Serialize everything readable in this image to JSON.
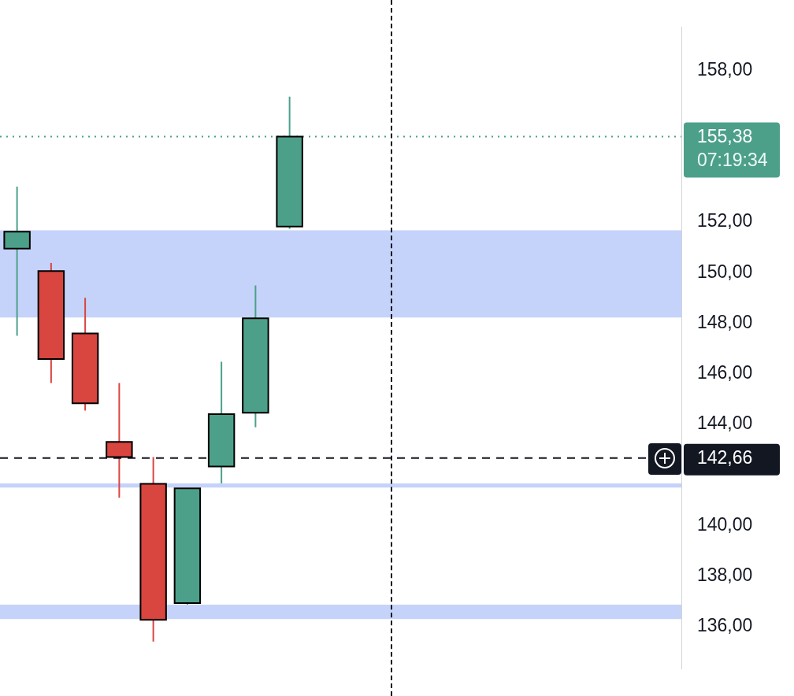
{
  "chart_data": {
    "type": "candlestick",
    "categories": [
      null,
      null,
      null,
      null,
      null,
      null,
      null,
      null,
      null,
      null,
      null,
      null,
      null,
      null,
      null,
      null,
      null,
      null,
      null,
      null
    ],
    "ohlc": [
      [
        150.95,
        153.4,
        147.5,
        151.62
      ],
      [
        150.06,
        150.38,
        145.63,
        146.58
      ],
      [
        147.59,
        149.0,
        144.54,
        144.83
      ],
      [
        143.3,
        145.63,
        141.09,
        142.7
      ],
      [
        141.64,
        142.7,
        135.4,
        136.26
      ],
      [
        136.92,
        141.46,
        136.86,
        141.46
      ],
      [
        142.33,
        146.47,
        141.66,
        144.4
      ],
      [
        144.45,
        149.49,
        143.88,
        148.19
      ],
      [
        151.82,
        156.96,
        151.73,
        155.38
      ],
      null,
      null,
      null,
      null,
      null,
      null,
      null,
      null,
      null,
      null,
      null
    ],
    "colors": [
      "#4ca08a",
      "#d9453f",
      "#d9453f",
      "#d9453f",
      "#d9453f",
      "#4ca08a",
      "#4ca08a",
      "#4ca08a",
      "#4ca08a",
      null,
      null,
      null,
      null,
      null,
      null,
      null,
      null,
      null,
      null,
      null
    ],
    "ylim": [
      134.3,
      159.73
    ],
    "yticks": [
      {
        "value": 136,
        "label": "136,00"
      },
      {
        "value": 138,
        "label": "138,00"
      },
      {
        "value": 140,
        "label": "140,00"
      },
      {
        "value": 144,
        "label": "144,00"
      },
      {
        "value": 146,
        "label": "146,00"
      },
      {
        "value": 148,
        "label": "148,00"
      },
      {
        "value": 150,
        "label": "150,00"
      },
      {
        "value": 152,
        "label": "152,00"
      },
      {
        "value": 158,
        "label": "158,00"
      }
    ],
    "tick_labels": "y",
    "grid": false,
    "legend": false,
    "bands": [
      {
        "axis": "y",
        "from": 148.22,
        "to": 151.67,
        "color": "#c5d3fa"
      },
      {
        "axis": "y",
        "from": 141.49,
        "to": 141.66,
        "color": "#c5d3fa"
      },
      {
        "axis": "y",
        "from": 136.29,
        "to": 136.86,
        "color": "#c5d3fa"
      }
    ],
    "ref_lines": [
      {
        "axis": "y",
        "value": 155.38,
        "label": "155,38",
        "color": "#4ca08a",
        "line_style": "dotted"
      },
      {
        "axis": "y",
        "value": 142.66,
        "label": "142,66",
        "color": "#131722",
        "line_style": "dashed"
      }
    ],
    "annotations": [
      "07:19:34"
    ]
  }
}
